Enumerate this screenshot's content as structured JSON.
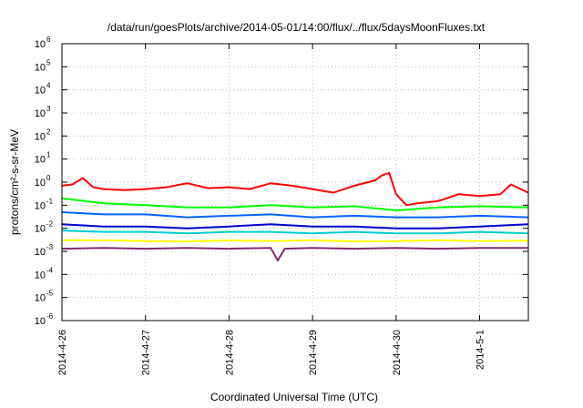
{
  "chart_data": {
    "type": "line",
    "title": "/data/run/goesPlots/archive/2014-05-01/14:00/flux/../flux/5daysMoonFluxes.txt",
    "xlabel": "Coordinated Universal Time (UTC)",
    "ylabel": "protons/cm²-s-sr-MeV",
    "yscale": "log",
    "ylim": [
      1e-06,
      1000000.0
    ],
    "xlim": [
      "2014-04-26T00:00",
      "2014-05-01T14:00"
    ],
    "grid": true,
    "legend": "none",
    "xticks": [
      {
        "date": "2014-04-26T00:00",
        "label": "2014-4-26"
      },
      {
        "date": "2014-04-27T00:00",
        "label": "2014-4-27"
      },
      {
        "date": "2014-04-28T00:00",
        "label": "2014-4-28"
      },
      {
        "date": "2014-04-29T00:00",
        "label": "2014-4-29"
      },
      {
        "date": "2014-04-30T00:00",
        "label": "2014-4-30"
      },
      {
        "date": "2014-05-01T00:00",
        "label": "2014-5-1"
      }
    ],
    "yticks": [
      {
        "value": 1e-06,
        "base": "10",
        "exp": "-6"
      },
      {
        "value": 1e-05,
        "base": "10",
        "exp": "-5"
      },
      {
        "value": 0.0001,
        "base": "10",
        "exp": "-4"
      },
      {
        "value": 0.001,
        "base": "10",
        "exp": "-3"
      },
      {
        "value": 0.01,
        "base": "10",
        "exp": "-2"
      },
      {
        "value": 0.1,
        "base": "10",
        "exp": "-1"
      },
      {
        "value": 1,
        "base": "10",
        "exp": "0"
      },
      {
        "value": 10,
        "base": "10",
        "exp": "1"
      },
      {
        "value": 100,
        "base": "10",
        "exp": "2"
      },
      {
        "value": 1000,
        "base": "10",
        "exp": "3"
      },
      {
        "value": 10000,
        "base": "10",
        "exp": "4"
      },
      {
        "value": 100000,
        "base": "10",
        "exp": "5"
      },
      {
        "value": 1000000,
        "base": "10",
        "exp": "6"
      }
    ],
    "series": [
      {
        "color": "#ff0000",
        "x": [
          "2014-04-26T00:00",
          "2014-04-26T03:00",
          "2014-04-26T06:00",
          "2014-04-26T09:00",
          "2014-04-26T12:00",
          "2014-04-26T18:00",
          "2014-04-27T00:00",
          "2014-04-27T06:00",
          "2014-04-27T12:00",
          "2014-04-27T18:00",
          "2014-04-28T00:00",
          "2014-04-28T06:00",
          "2014-04-28T12:00",
          "2014-04-28T18:00",
          "2014-04-29T00:00",
          "2014-04-29T06:00",
          "2014-04-29T12:00",
          "2014-04-29T18:00",
          "2014-04-29T20:00",
          "2014-04-29T22:00",
          "2014-04-30T00:00",
          "2014-04-30T03:00",
          "2014-04-30T06:00",
          "2014-04-30T12:00",
          "2014-04-30T18:00",
          "2014-05-01T00:00",
          "2014-05-01T06:00",
          "2014-05-01T09:00",
          "2014-05-01T14:00"
        ],
        "y": [
          0.7,
          0.8,
          1.5,
          0.6,
          0.5,
          0.45,
          0.5,
          0.6,
          0.9,
          0.55,
          0.6,
          0.5,
          0.9,
          0.7,
          0.5,
          0.35,
          0.7,
          1.2,
          2.0,
          2.5,
          0.3,
          0.1,
          0.12,
          0.15,
          0.3,
          0.25,
          0.3,
          0.8,
          0.35
        ]
      },
      {
        "color": "#00ff00",
        "x": [
          "2014-04-26T00:00",
          "2014-04-26T12:00",
          "2014-04-27T00:00",
          "2014-04-27T12:00",
          "2014-04-28T00:00",
          "2014-04-28T12:00",
          "2014-04-29T00:00",
          "2014-04-29T12:00",
          "2014-04-30T00:00",
          "2014-04-30T12:00",
          "2014-05-01T00:00",
          "2014-05-01T14:00"
        ],
        "y": [
          0.2,
          0.12,
          0.1,
          0.08,
          0.08,
          0.1,
          0.08,
          0.09,
          0.06,
          0.08,
          0.09,
          0.08
        ]
      },
      {
        "color": "#0066ff",
        "x": [
          "2014-04-26T00:00",
          "2014-04-26T12:00",
          "2014-04-27T00:00",
          "2014-04-27T12:00",
          "2014-04-28T00:00",
          "2014-04-28T12:00",
          "2014-04-29T00:00",
          "2014-04-29T12:00",
          "2014-04-30T00:00",
          "2014-04-30T12:00",
          "2014-05-01T00:00",
          "2014-05-01T14:00"
        ],
        "y": [
          0.05,
          0.04,
          0.04,
          0.03,
          0.035,
          0.04,
          0.03,
          0.035,
          0.03,
          0.03,
          0.035,
          0.03
        ]
      },
      {
        "color": "#0000cc",
        "x": [
          "2014-04-26T00:00",
          "2014-04-26T12:00",
          "2014-04-27T00:00",
          "2014-04-27T12:00",
          "2014-04-28T00:00",
          "2014-04-28T12:00",
          "2014-04-29T00:00",
          "2014-04-29T12:00",
          "2014-04-30T00:00",
          "2014-04-30T12:00",
          "2014-05-01T00:00",
          "2014-05-01T14:00"
        ],
        "y": [
          0.015,
          0.012,
          0.012,
          0.01,
          0.012,
          0.015,
          0.012,
          0.012,
          0.01,
          0.01,
          0.012,
          0.015
        ]
      },
      {
        "color": "#00cccc",
        "x": [
          "2014-04-26T00:00",
          "2014-04-26T12:00",
          "2014-04-27T00:00",
          "2014-04-27T12:00",
          "2014-04-28T00:00",
          "2014-04-28T12:00",
          "2014-04-29T00:00",
          "2014-04-29T12:00",
          "2014-04-30T00:00",
          "2014-04-30T12:00",
          "2014-05-01T00:00",
          "2014-05-01T14:00"
        ],
        "y": [
          0.008,
          0.007,
          0.007,
          0.006,
          0.007,
          0.007,
          0.006,
          0.007,
          0.006,
          0.006,
          0.007,
          0.006
        ]
      },
      {
        "color": "#ffff00",
        "x": [
          "2014-04-26T00:00",
          "2014-04-26T12:00",
          "2014-04-27T00:00",
          "2014-04-27T12:00",
          "2014-04-28T00:00",
          "2014-04-28T12:00",
          "2014-04-29T00:00",
          "2014-04-29T12:00",
          "2014-04-30T00:00",
          "2014-04-30T12:00",
          "2014-05-01T00:00",
          "2014-05-01T14:00"
        ],
        "y": [
          0.003,
          0.003,
          0.0028,
          0.0027,
          0.003,
          0.0028,
          0.003,
          0.0027,
          0.0028,
          0.003,
          0.0028,
          0.0029
        ]
      },
      {
        "color": "#7b2d6e",
        "x": [
          "2014-04-26T00:00",
          "2014-04-26T12:00",
          "2014-04-27T00:00",
          "2014-04-27T12:00",
          "2014-04-28T00:00",
          "2014-04-28T12:00",
          "2014-04-28T14:00",
          "2014-04-28T16:00",
          "2014-04-29T00:00",
          "2014-04-29T12:00",
          "2014-04-30T00:00",
          "2014-04-30T12:00",
          "2014-05-01T00:00",
          "2014-05-01T14:00"
        ],
        "y": [
          0.0013,
          0.0014,
          0.0013,
          0.0014,
          0.0013,
          0.0014,
          0.0004,
          0.0013,
          0.0014,
          0.0013,
          0.0014,
          0.0013,
          0.0014,
          0.0014
        ]
      }
    ]
  }
}
